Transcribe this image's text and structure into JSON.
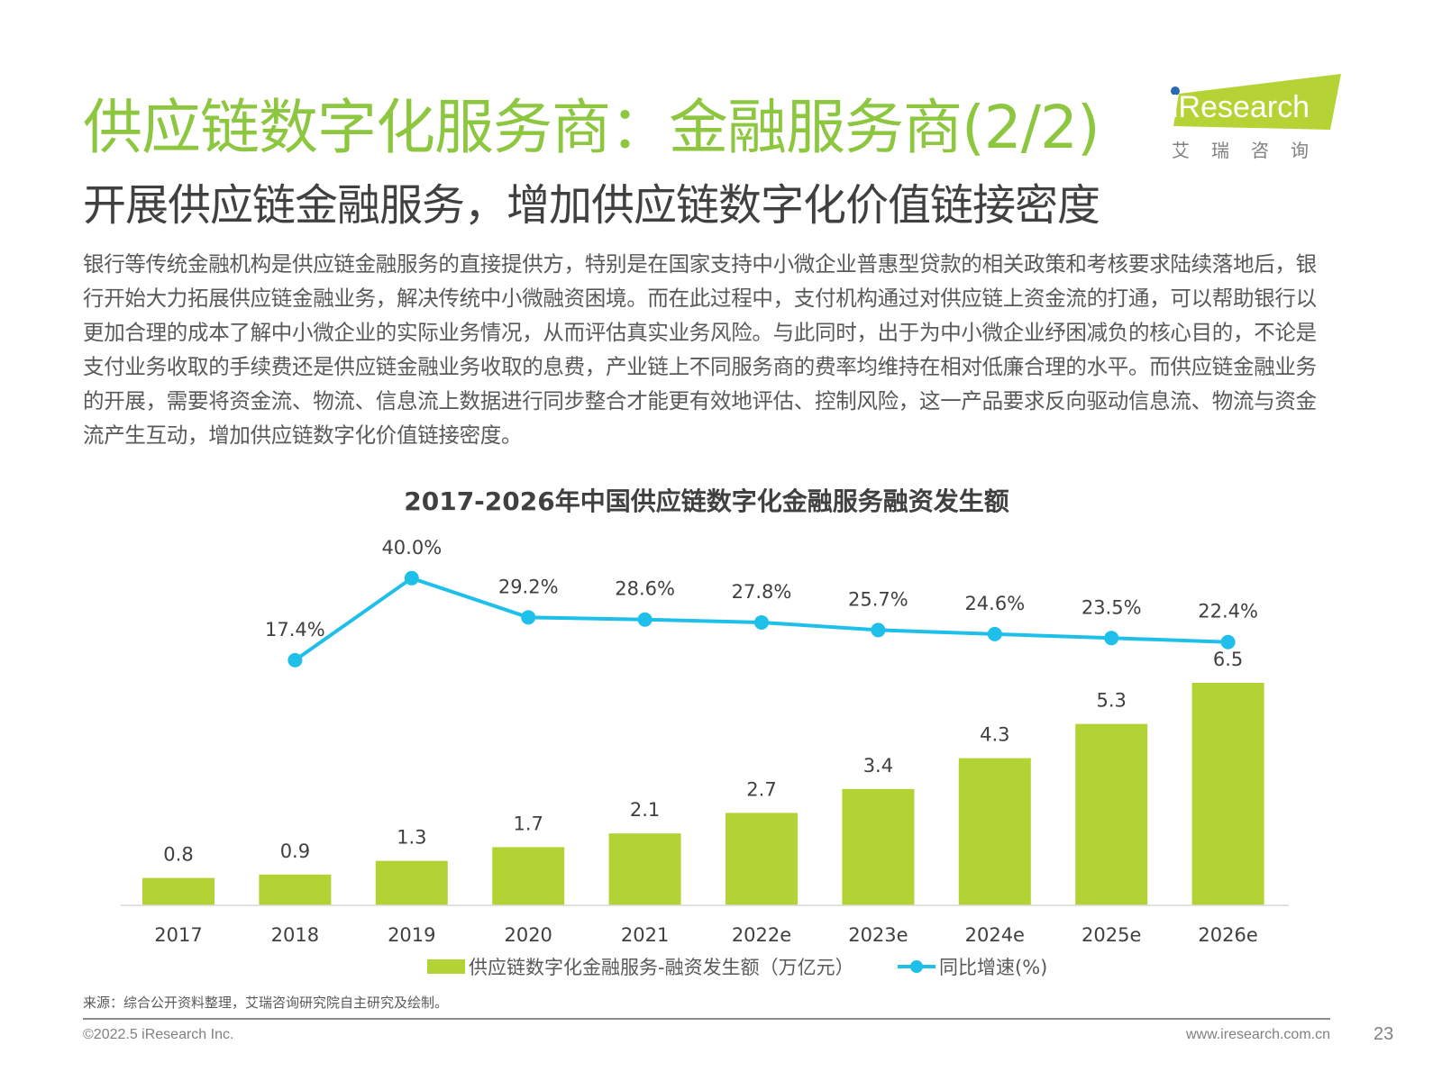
{
  "header": {
    "title": "供应链数字化服务商：金融服务商(2/2)",
    "subtitle": "开展供应链金融服务，增加供应链数字化价值链接密度"
  },
  "logo": {
    "text": "iResearch",
    "cn": "艾 瑞 咨 询",
    "color": "#b5d334",
    "dot_color": "#2a6ab3"
  },
  "body_text": "银行等传统金融机构是供应链金融服务的直接提供方，特别是在国家支持中小微企业普惠型贷款的相关政策和考核要求陆续落地后，银行开始大力拓展供应链金融业务，解决传统中小微融资困境。而在此过程中，支付机构通过对供应链上资金流的打通，可以帮助银行以更加合理的成本了解中小微企业的实际业务情况，从而评估真实业务风险。与此同时，出于为中小微企业纾困减负的核心目的，不论是支付业务收取的手续费还是供应链金融业务收取的息费，产业链上不同服务商的费率均维持在相对低廉合理的水平。而供应链金融业务的开展，需要将资金流、物流、信息流上数据进行同步整合才能更有效地评估、控制风险，这一产品要求反向驱动信息流、物流与资金流产生互动，增加供应链数字化价值链接密度。",
  "chart_data": {
    "type": "bar+line",
    "title": "2017-2026年中国供应链数字化金融服务融资发生额",
    "categories": [
      "2017",
      "2018",
      "2019",
      "2020",
      "2021",
      "2022e",
      "2023e",
      "2024e",
      "2025e",
      "2026e"
    ],
    "series": [
      {
        "name": "供应链数字化金融服务-融资发生额（万亿元）",
        "type": "bar",
        "color": "#b3d334",
        "values": [
          0.8,
          0.9,
          1.3,
          1.7,
          2.1,
          2.7,
          3.4,
          4.3,
          5.3,
          6.5
        ],
        "labels": [
          "0.8",
          "0.9",
          "1.3",
          "1.7",
          "2.1",
          "2.7",
          "3.4",
          "4.3",
          "5.3",
          "6.5"
        ]
      },
      {
        "name": "同比增速(%)",
        "type": "line",
        "color": "#1ec0ea",
        "values": [
          null,
          17.4,
          40.0,
          29.2,
          28.6,
          27.8,
          25.7,
          24.6,
          23.5,
          22.4
        ],
        "labels": [
          "",
          "17.4%",
          "40.0%",
          "29.2%",
          "28.6%",
          "27.8%",
          "25.7%",
          "24.6%",
          "23.5%",
          "22.4%"
        ]
      }
    ],
    "legend": "bottom",
    "grid": false
  },
  "footer": {
    "source": "来源：综合公开资料整理，艾瑞咨询研究院自主研究及绘制。",
    "copyright": "©2022.5 iResearch Inc.",
    "url": "www.iresearch.com.cn",
    "page": "23"
  }
}
